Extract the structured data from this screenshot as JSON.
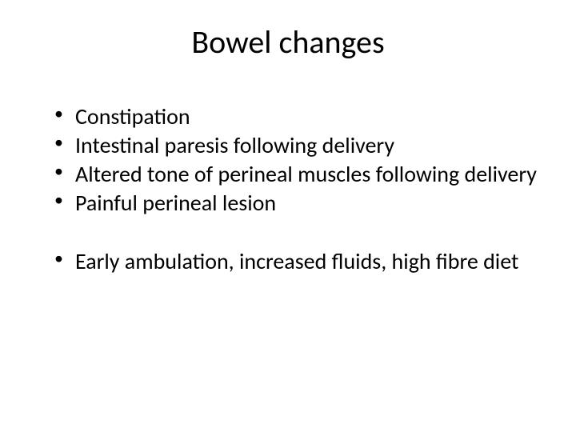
{
  "slide": {
    "title": "Bowel changes",
    "title_fontsize": 40,
    "title_align": "center",
    "bullets_group1": [
      "Constipation",
      "Intestinal paresis following delivery",
      "Altered tone of perineal muscles following delivery",
      "Painful perineal lesion"
    ],
    "bullets_group2": [
      "Early ambulation, increased fluids, high fibre diet"
    ],
    "bullet_fontsize": 28,
    "background_color": "#ffffff",
    "text_color": "#000000",
    "font_family": "Calibri"
  }
}
